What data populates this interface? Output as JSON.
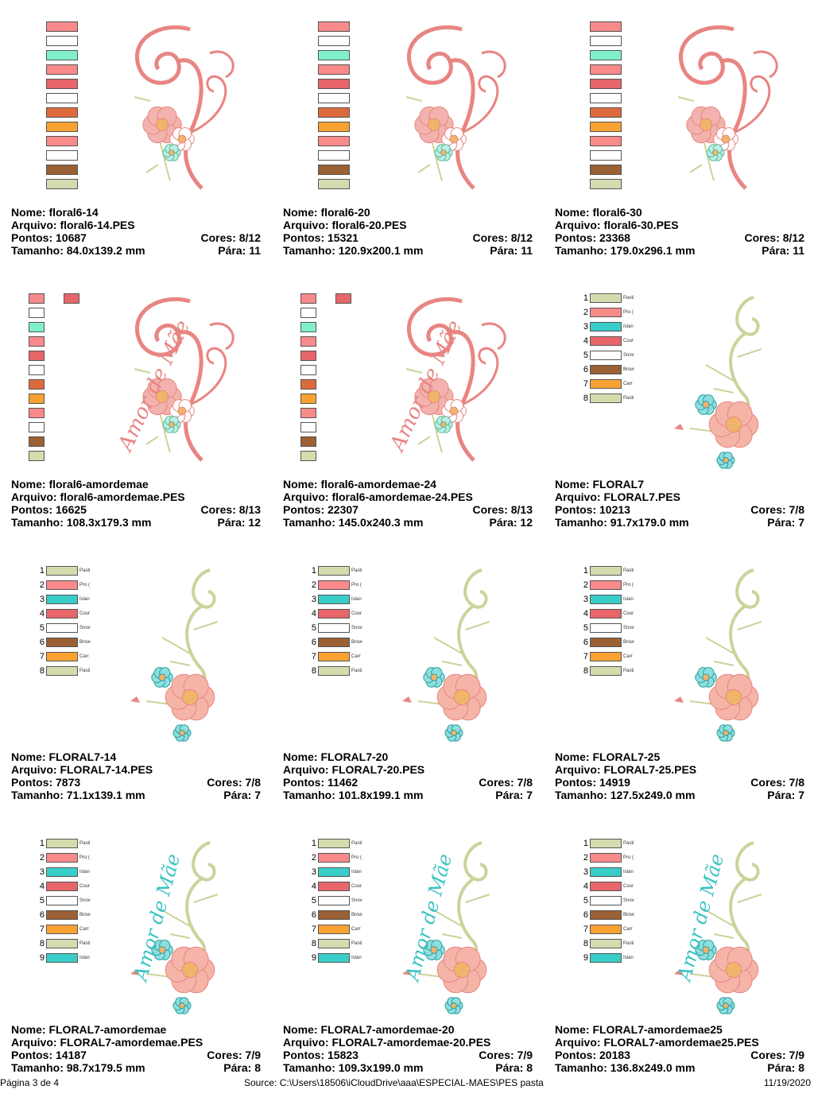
{
  "labels": {
    "name": "Nome:",
    "file": "Arquivo:",
    "points": "Pontos:",
    "size": "Tamanho:",
    "colors": "Cores:",
    "stops": "Pára:"
  },
  "palette": {
    "pink": "#f98a8a",
    "white": "#ffffff",
    "mint": "#7ff0c8",
    "coral": "#e8666a",
    "rust": "#dd6a3c",
    "orange": "#f7a233",
    "brown": "#9b6034",
    "sage": "#d4dcae",
    "teal": "#39cdc9",
    "motif_pink": "#e88582",
    "motif_green": "#c9d49a",
    "motif_teal": "#3cc3c3"
  },
  "thread_names": [
    "Pasti",
    "Pro (",
    "Islan",
    "Cour",
    "Snov",
    "Brow",
    "Carr",
    "Pasti",
    "Islan"
  ],
  "designs": [
    {
      "name": "floral6-14",
      "file": "floral6-14.PES",
      "points": "10687",
      "size": "84.0x139.2 mm",
      "colors": "8/12",
      "stops": "11",
      "swatch_style": "plain",
      "art": "floral6",
      "text": ""
    },
    {
      "name": "floral6-20",
      "file": "floral6-20.PES",
      "points": "15321",
      "size": "120.9x200.1 mm",
      "colors": "8/12",
      "stops": "11",
      "swatch_style": "plain",
      "art": "floral6",
      "text": ""
    },
    {
      "name": "floral6-30",
      "file": "floral6-30.PES",
      "points": "23368",
      "size": "179.0x296.1 mm",
      "colors": "8/12",
      "stops": "11",
      "swatch_style": "plain",
      "art": "floral6",
      "text": ""
    },
    {
      "name": "floral6-amordemae",
      "file": "floral6-amordemae.PES",
      "points": "16625",
      "size": "108.3x179.3 mm",
      "colors": "8/13",
      "stops": "12",
      "swatch_style": "small",
      "art": "floral6",
      "text": "Amor de Mãe"
    },
    {
      "name": "floral6-amordemae-24",
      "file": "floral6-amordemae-24.PES",
      "points": "22307",
      "size": "145.0x240.3 mm",
      "colors": "8/13",
      "stops": "12",
      "swatch_style": "small",
      "art": "floral6",
      "text": "Amor de Mãe"
    },
    {
      "name": "FLORAL7",
      "file": "FLORAL7.PES",
      "points": "10213",
      "size": "91.7x179.0 mm",
      "colors": "7/8",
      "stops": "7",
      "swatch_style": "numbered",
      "art": "floral7",
      "text": ""
    },
    {
      "name": "FLORAL7-14",
      "file": "FLORAL7-14.PES",
      "points": "7873",
      "size": "71.1x139.1 mm",
      "colors": "7/8",
      "stops": "7",
      "swatch_style": "numbered",
      "art": "floral7",
      "text": ""
    },
    {
      "name": "FLORAL7-20",
      "file": "FLORAL7-20.PES",
      "points": "11462",
      "size": "101.8x199.1 mm",
      "colors": "7/8",
      "stops": "7",
      "swatch_style": "numbered",
      "art": "floral7",
      "text": ""
    },
    {
      "name": "FLORAL7-25",
      "file": "FLORAL7-25.PES",
      "points": "14919",
      "size": "127.5x249.0 mm",
      "colors": "7/8",
      "stops": "7",
      "swatch_style": "numbered",
      "art": "floral7",
      "text": ""
    },
    {
      "name": "FLORAL7-amordemae",
      "file": "FLORAL7-amordemae.PES",
      "points": "14187",
      "size": "98.7x179.5 mm",
      "colors": "7/9",
      "stops": "8",
      "swatch_style": "numbered9",
      "art": "floral7",
      "text": "Amor de Mãe"
    },
    {
      "name": "FLORAL7-amordemae-20",
      "file": "FLORAL7-amordemae-20.PES",
      "points": "15823",
      "size": "109.3x199.0 mm",
      "colors": "7/9",
      "stops": "8",
      "swatch_style": "numbered9",
      "art": "floral7",
      "text": "Amor de Mãe"
    },
    {
      "name": "FLORAL7-amordemae25",
      "file": "FLORAL7-amordemae25.PES",
      "points": "20183",
      "size": "136.8x249.0 mm",
      "colors": "7/9",
      "stops": "8",
      "swatch_style": "numbered9",
      "art": "floral7",
      "text": "Amor de Mãe"
    }
  ],
  "footer": {
    "page": "Página 3 de 4",
    "source": "Source:  C:\\Users\\18506\\iCloudDrive\\aaa\\ESPECIAL-MAES\\PES pasta",
    "date": "11/19/2020"
  }
}
